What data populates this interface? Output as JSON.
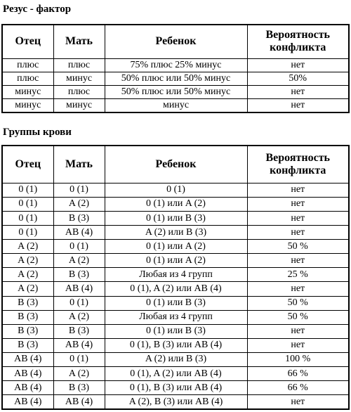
{
  "rh_section": {
    "title": "Резус - фактор",
    "headers": {
      "father": "Отец",
      "mother": "Мать",
      "child": "Ребенок",
      "risk": "Вероятность конфликта"
    },
    "rows": [
      {
        "father": "плюс",
        "mother": "плюс",
        "child": "75% плюс 25% минус",
        "risk": "нет"
      },
      {
        "father": "плюс",
        "mother": "минус",
        "child": "50% плюс или 50% минус",
        "risk": "50%"
      },
      {
        "father": "минус",
        "mother": "плюс",
        "child": "50% плюс или 50% минус",
        "risk": "нет"
      },
      {
        "father": "минус",
        "mother": "минус",
        "child": "минус",
        "risk": "нет"
      }
    ]
  },
  "blood_section": {
    "title": "Группы крови",
    "headers": {
      "father": "Отец",
      "mother": "Мать",
      "child": "Ребенок",
      "risk": "Вероятность конфликта"
    },
    "rows": [
      {
        "father": "0 (1)",
        "mother": "0 (1)",
        "child": "0 (1)",
        "risk": "нет"
      },
      {
        "father": "0 (1)",
        "mother": "A (2)",
        "child": "0 (1) или A (2)",
        "risk": "нет"
      },
      {
        "father": "0 (1)",
        "mother": "B (3)",
        "child": "0 (1) или B (3)",
        "risk": "нет"
      },
      {
        "father": "0 (1)",
        "mother": "AB (4)",
        "child": "A (2) или B (3)",
        "risk": "нет"
      },
      {
        "father": "A (2)",
        "mother": "0 (1)",
        "child": "0 (1) или A (2)",
        "risk": "50 %"
      },
      {
        "father": "A (2)",
        "mother": "A (2)",
        "child": "0 (1) или A (2)",
        "risk": "нет"
      },
      {
        "father": "A (2)",
        "mother": "B (3)",
        "child": "Любая из 4 групп",
        "risk": "25 %"
      },
      {
        "father": "A (2)",
        "mother": "AB (4)",
        "child": "0 (1), A (2) или AB (4)",
        "risk": "нет"
      },
      {
        "father": "B (3)",
        "mother": "0 (1)",
        "child": "0 (1) или B (3)",
        "risk": "50 %"
      },
      {
        "father": "B (3)",
        "mother": "A (2)",
        "child": "Любая из 4 групп",
        "risk": "50 %"
      },
      {
        "father": "B (3)",
        "mother": "B (3)",
        "child": "0 (1) или B (3)",
        "risk": "нет"
      },
      {
        "father": "B (3)",
        "mother": "AB (4)",
        "child": "0 (1), B (3) или AB (4)",
        "risk": "нет"
      },
      {
        "father": "AB (4)",
        "mother": "0 (1)",
        "child": "A (2) или B (3)",
        "risk": "100 %"
      },
      {
        "father": "AB (4)",
        "mother": "A (2)",
        "child": "0 (1), A (2) или AB (4)",
        "risk": "66 %"
      },
      {
        "father": "AB (4)",
        "mother": "B (3)",
        "child": "0 (1), B (3) или AB (4)",
        "risk": "66 %"
      },
      {
        "father": "AB (4)",
        "mother": "AB (4)",
        "child": "A (2), B (3) или AB (4)",
        "risk": "нет"
      }
    ]
  }
}
